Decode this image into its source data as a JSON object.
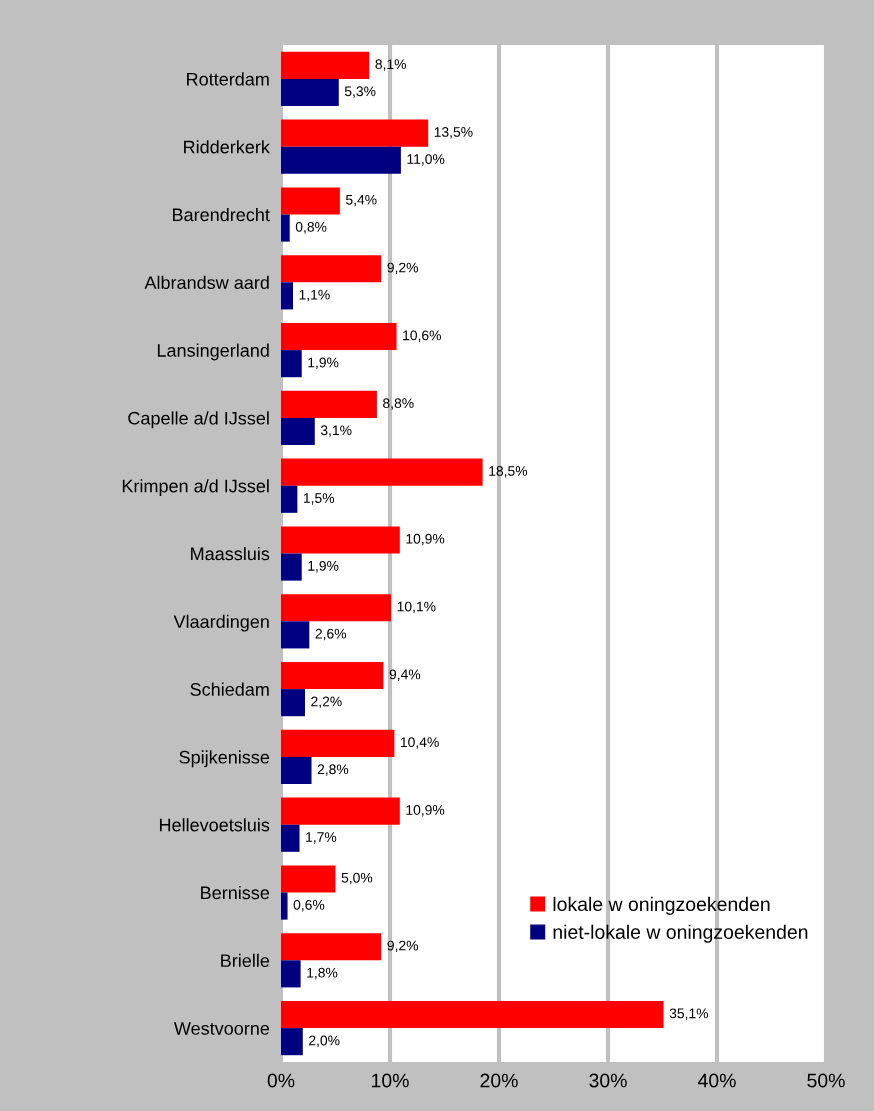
{
  "chart_data": {
    "type": "bar",
    "orientation": "horizontal",
    "categories": [
      "Rotterdam",
      "Ridderkerk",
      "Barendrecht",
      "Albrandsw aard",
      "Lansingerland",
      "Capelle a/d IJssel",
      "Krimpen a/d IJssel",
      "Maassluis",
      "Vlaardingen",
      "Schiedam",
      "Spijkenisse",
      "Hellevoetsluis",
      "Bernisse",
      "Brielle",
      "Westvoorne"
    ],
    "series": [
      {
        "name": "lokale w oningzoekenden",
        "color": "#ff0000",
        "values": [
          8.1,
          13.5,
          5.4,
          9.2,
          10.6,
          8.8,
          18.5,
          10.9,
          10.1,
          9.4,
          10.4,
          10.9,
          5.0,
          9.2,
          35.1
        ],
        "value_labels": [
          "8,1%",
          "13,5%",
          "5,4%",
          "9,2%",
          "10,6%",
          "8,8%",
          "18,5%",
          "10,9%",
          "10,1%",
          "9,4%",
          "10,4%",
          "10,9%",
          "5,0%",
          "9,2%",
          "35,1%"
        ]
      },
      {
        "name": "niet-lokale w oningzoekenden",
        "color": "#000080",
        "values": [
          5.3,
          11.0,
          0.8,
          1.1,
          1.9,
          3.1,
          1.5,
          1.9,
          2.6,
          2.2,
          2.8,
          1.7,
          0.6,
          1.8,
          2.0
        ],
        "value_labels": [
          "5,3%",
          "11,0%",
          "0,8%",
          "1,1%",
          "1,9%",
          "3,1%",
          "1,5%",
          "1,9%",
          "2,6%",
          "2,2%",
          "2,8%",
          "1,7%",
          "0,6%",
          "1,8%",
          "2,0%"
        ]
      }
    ],
    "xlim": [
      0,
      50
    ],
    "xticks": [
      {
        "value": 0,
        "label": "0%"
      },
      {
        "value": 10,
        "label": "10%"
      },
      {
        "value": 20,
        "label": "20%"
      },
      {
        "value": 30,
        "label": "30%"
      },
      {
        "value": 40,
        "label": "40%"
      },
      {
        "value": 50,
        "label": "50%"
      }
    ],
    "grid": "x",
    "legend": "bottom right"
  }
}
